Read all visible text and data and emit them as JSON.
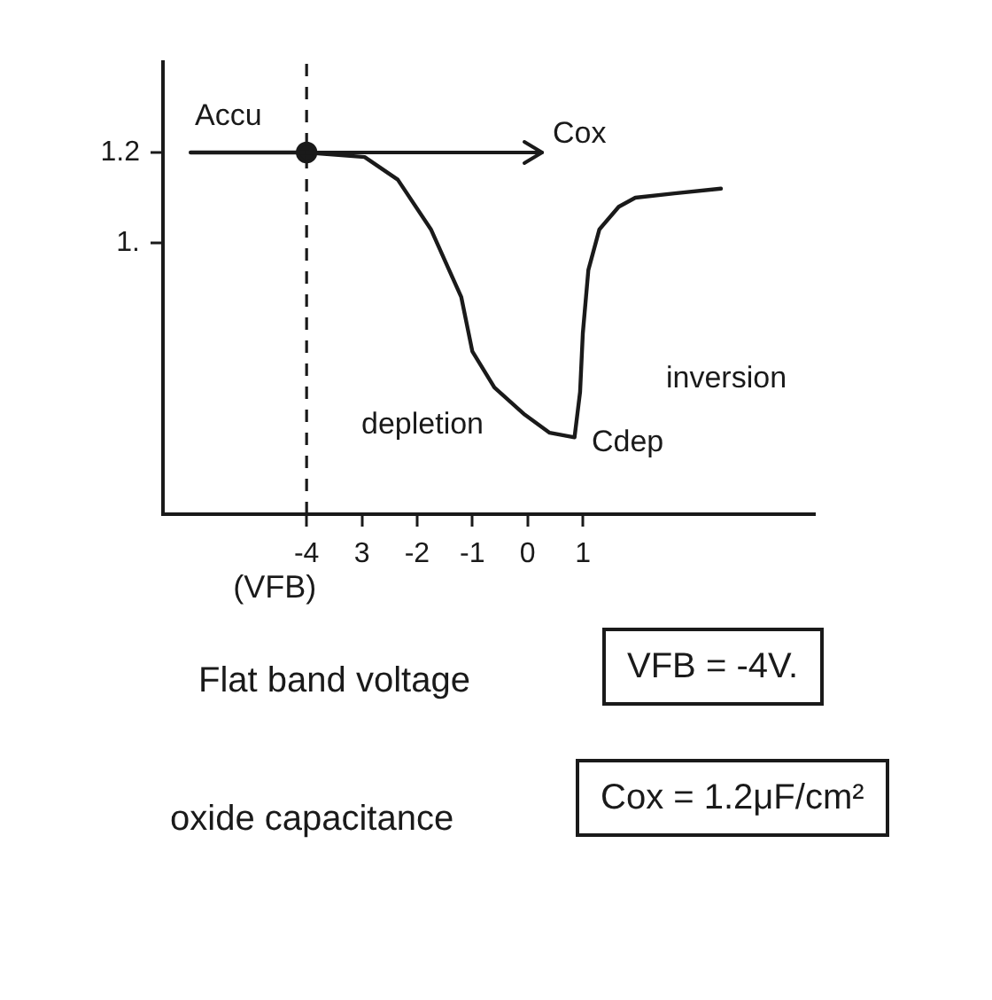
{
  "chart_data": {
    "type": "line",
    "series": [
      {
        "type": "line",
        "color": "#1a1a1a",
        "marker": "none",
        "line_style": "solid",
        "x": [
          -6.1,
          -4,
          -2.95,
          -2.35,
          -1.75,
          -1.2,
          -1,
          -0.6,
          -0.05,
          0.4,
          0.85,
          0.95,
          1,
          1.1,
          1.3,
          1.65,
          1.95,
          2.7,
          3.5
        ],
        "values": [
          1.2,
          1.2,
          1.19,
          1.14,
          1.03,
          0.88,
          0.76,
          0.68,
          0.62,
          0.58,
          0.57,
          0.67,
          0.8,
          0.94,
          1.03,
          1.08,
          1.1,
          1.11,
          1.12
        ]
      },
      {
        "type": "scatter",
        "color": "#1a1a1a",
        "marker": "circle",
        "x": [
          -4
        ],
        "values": [
          1.2
        ]
      }
    ],
    "xlim": [
      -6.6,
      5.2
    ],
    "ylim": [
      0.4,
      1.4
    ],
    "xticks": [
      -4,
      {
        "value": -3,
        "label": "3"
      },
      -2,
      -1,
      0,
      1
    ],
    "yticks": [
      {
        "value": 1,
        "label": "1."
      },
      1.2
    ],
    "grid": false,
    "legend": false,
    "ref_lines": [
      {
        "axis": "x",
        "value": -4,
        "label": "(VFB)",
        "line_style": "dashed",
        "color": "#1a1a1a"
      }
    ],
    "annotations": [
      {
        "text": "Cox",
        "x": -4,
        "y": 1.2
      },
      "Accu",
      "depletion",
      "inversion",
      "Cdep",
      "Flat band voltage",
      "VFB = -4V.",
      "oxide capacitance",
      "Cox = 1.2μF/cm²"
    ]
  }
}
